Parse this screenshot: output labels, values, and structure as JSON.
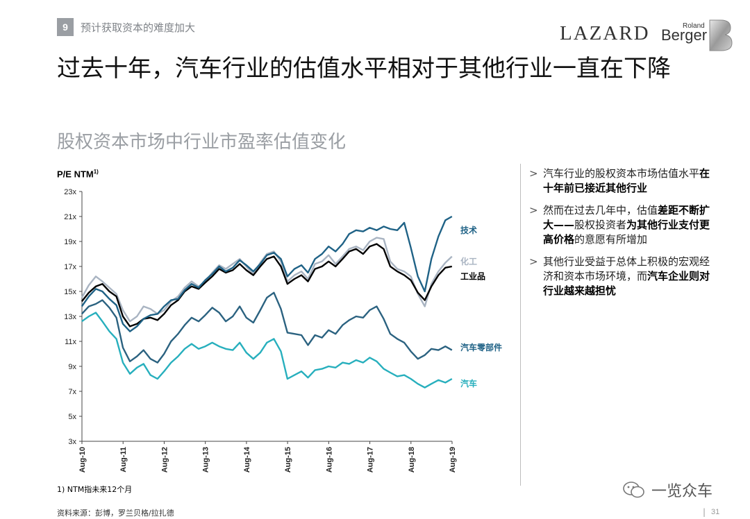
{
  "header": {
    "section_number": "9",
    "section_title": "预计获取资本的难度加大",
    "logo_lazard": "LAZARD",
    "logo_roland": "Roland",
    "logo_berger": "Berger"
  },
  "title": "过去十年，汽车行业的估值水平相对于其他行业一直在下降",
  "subtitle": "股权资本市场中行业市盈率估值变化",
  "chart_data": {
    "type": "line",
    "ylabel": "P/E NTM",
    "ylabel_sup": "1)",
    "ylim": [
      3,
      23
    ],
    "y_ticks": [
      "3x",
      "5x",
      "7x",
      "9x",
      "11x",
      "13x",
      "15x",
      "17x",
      "19x",
      "21x",
      "23x"
    ],
    "x_ticks": [
      "Aug-10",
      "Aug-11",
      "Aug-12",
      "Aug-13",
      "Aug-14",
      "Aug-15",
      "Aug-16",
      "Aug-17",
      "Aug-18",
      "Aug-19"
    ],
    "x_range": [
      2010.583,
      2019.583
    ],
    "series": [
      {
        "name": "化工",
        "color": "#a9b4c2",
        "points": [
          [
            2010.58,
            14.5
          ],
          [
            2010.75,
            15.5
          ],
          [
            2010.92,
            16.2
          ],
          [
            2011.08,
            15.8
          ],
          [
            2011.25,
            15.3
          ],
          [
            2011.42,
            14.8
          ],
          [
            2011.58,
            13.5
          ],
          [
            2011.75,
            12.6
          ],
          [
            2011.92,
            13.0
          ],
          [
            2012.08,
            13.8
          ],
          [
            2012.25,
            13.6
          ],
          [
            2012.42,
            13.2
          ],
          [
            2012.58,
            13.5
          ],
          [
            2012.75,
            14.2
          ],
          [
            2012.92,
            14.6
          ],
          [
            2013.08,
            15.3
          ],
          [
            2013.25,
            15.8
          ],
          [
            2013.42,
            15.4
          ],
          [
            2013.58,
            15.8
          ],
          [
            2013.75,
            16.5
          ],
          [
            2013.92,
            17.1
          ],
          [
            2014.08,
            16.8
          ],
          [
            2014.25,
            17.2
          ],
          [
            2014.42,
            17.6
          ],
          [
            2014.58,
            17.0
          ],
          [
            2014.75,
            16.4
          ],
          [
            2014.92,
            17.3
          ],
          [
            2015.08,
            18.0
          ],
          [
            2015.25,
            18.2
          ],
          [
            2015.42,
            17.4
          ],
          [
            2015.58,
            15.8
          ],
          [
            2015.75,
            16.3
          ],
          [
            2015.92,
            16.6
          ],
          [
            2016.08,
            16.0
          ],
          [
            2016.25,
            17.2
          ],
          [
            2016.42,
            17.4
          ],
          [
            2016.58,
            17.9
          ],
          [
            2016.75,
            17.2
          ],
          [
            2016.92,
            17.8
          ],
          [
            2017.08,
            18.4
          ],
          [
            2017.25,
            18.6
          ],
          [
            2017.42,
            18.3
          ],
          [
            2017.58,
            19.0
          ],
          [
            2017.75,
            19.3
          ],
          [
            2017.92,
            19.2
          ],
          [
            2018.08,
            17.4
          ],
          [
            2018.25,
            16.8
          ],
          [
            2018.42,
            16.6
          ],
          [
            2018.58,
            16.2
          ],
          [
            2018.75,
            14.8
          ],
          [
            2018.92,
            13.8
          ],
          [
            2019.08,
            15.6
          ],
          [
            2019.25,
            16.6
          ],
          [
            2019.42,
            17.3
          ],
          [
            2019.58,
            17.8
          ]
        ]
      },
      {
        "name": "工业品",
        "color": "#000000",
        "points": [
          [
            2010.58,
            14.2
          ],
          [
            2010.75,
            14.9
          ],
          [
            2010.92,
            15.4
          ],
          [
            2011.08,
            15.6
          ],
          [
            2011.25,
            15.0
          ],
          [
            2011.42,
            14.6
          ],
          [
            2011.58,
            13.0
          ],
          [
            2011.75,
            12.2
          ],
          [
            2011.92,
            12.4
          ],
          [
            2012.08,
            12.8
          ],
          [
            2012.25,
            12.9
          ],
          [
            2012.42,
            12.7
          ],
          [
            2012.58,
            13.2
          ],
          [
            2012.75,
            13.9
          ],
          [
            2012.92,
            14.3
          ],
          [
            2013.08,
            15.0
          ],
          [
            2013.25,
            15.4
          ],
          [
            2013.42,
            15.2
          ],
          [
            2013.58,
            15.7
          ],
          [
            2013.75,
            16.2
          ],
          [
            2013.92,
            16.8
          ],
          [
            2014.08,
            16.5
          ],
          [
            2014.25,
            16.7
          ],
          [
            2014.42,
            17.2
          ],
          [
            2014.58,
            16.7
          ],
          [
            2014.75,
            16.3
          ],
          [
            2014.92,
            17.0
          ],
          [
            2015.08,
            17.6
          ],
          [
            2015.25,
            17.8
          ],
          [
            2015.42,
            17.0
          ],
          [
            2015.58,
            15.6
          ],
          [
            2015.75,
            16.0
          ],
          [
            2015.92,
            16.3
          ],
          [
            2016.08,
            15.8
          ],
          [
            2016.25,
            16.8
          ],
          [
            2016.42,
            17.0
          ],
          [
            2016.58,
            17.4
          ],
          [
            2016.75,
            17.0
          ],
          [
            2016.92,
            17.6
          ],
          [
            2017.08,
            18.2
          ],
          [
            2017.25,
            18.4
          ],
          [
            2017.42,
            18.0
          ],
          [
            2017.58,
            18.6
          ],
          [
            2017.75,
            18.8
          ],
          [
            2017.92,
            18.4
          ],
          [
            2018.08,
            17.0
          ],
          [
            2018.25,
            16.6
          ],
          [
            2018.42,
            16.3
          ],
          [
            2018.58,
            15.9
          ],
          [
            2018.75,
            14.9
          ],
          [
            2018.92,
            14.3
          ],
          [
            2019.08,
            15.4
          ],
          [
            2019.25,
            16.3
          ],
          [
            2019.42,
            16.9
          ],
          [
            2019.58,
            17.0
          ]
        ]
      },
      {
        "name": "技术",
        "color": "#1f6286",
        "points": [
          [
            2010.58,
            13.8
          ],
          [
            2010.75,
            14.6
          ],
          [
            2010.92,
            15.2
          ],
          [
            2011.08,
            15.0
          ],
          [
            2011.25,
            14.4
          ],
          [
            2011.42,
            13.9
          ],
          [
            2011.58,
            12.4
          ],
          [
            2011.75,
            11.8
          ],
          [
            2011.92,
            12.2
          ],
          [
            2012.08,
            12.8
          ],
          [
            2012.25,
            13.1
          ],
          [
            2012.42,
            13.2
          ],
          [
            2012.58,
            13.8
          ],
          [
            2012.75,
            14.3
          ],
          [
            2012.92,
            14.4
          ],
          [
            2013.08,
            15.1
          ],
          [
            2013.25,
            15.6
          ],
          [
            2013.42,
            15.3
          ],
          [
            2013.58,
            15.9
          ],
          [
            2013.75,
            16.4
          ],
          [
            2013.92,
            17.0
          ],
          [
            2014.08,
            16.6
          ],
          [
            2014.25,
            16.9
          ],
          [
            2014.42,
            17.5
          ],
          [
            2014.58,
            17.1
          ],
          [
            2014.75,
            16.6
          ],
          [
            2014.92,
            17.2
          ],
          [
            2015.08,
            17.9
          ],
          [
            2015.25,
            18.1
          ],
          [
            2015.42,
            17.6
          ],
          [
            2015.58,
            16.2
          ],
          [
            2015.75,
            16.8
          ],
          [
            2015.92,
            17.1
          ],
          [
            2016.08,
            16.5
          ],
          [
            2016.25,
            17.6
          ],
          [
            2016.42,
            18.0
          ],
          [
            2016.58,
            18.6
          ],
          [
            2016.75,
            18.2
          ],
          [
            2016.92,
            18.8
          ],
          [
            2017.08,
            19.6
          ],
          [
            2017.25,
            19.9
          ],
          [
            2017.42,
            19.8
          ],
          [
            2017.58,
            20.1
          ],
          [
            2017.75,
            19.9
          ],
          [
            2017.92,
            20.2
          ],
          [
            2018.08,
            20.0
          ],
          [
            2018.25,
            19.9
          ],
          [
            2018.42,
            20.5
          ],
          [
            2018.58,
            18.5
          ],
          [
            2018.75,
            16.2
          ],
          [
            2018.92,
            15.0
          ],
          [
            2019.08,
            17.6
          ],
          [
            2019.25,
            19.4
          ],
          [
            2019.42,
            20.7
          ],
          [
            2019.58,
            21.0
          ]
        ]
      },
      {
        "name": "汽车零部件",
        "color": "#2b6280",
        "points": [
          [
            2010.58,
            13.2
          ],
          [
            2010.75,
            13.8
          ],
          [
            2010.92,
            14.0
          ],
          [
            2011.08,
            14.3
          ],
          [
            2011.25,
            13.7
          ],
          [
            2011.42,
            12.9
          ],
          [
            2011.58,
            10.5
          ],
          [
            2011.75,
            9.4
          ],
          [
            2011.92,
            9.8
          ],
          [
            2012.08,
            10.3
          ],
          [
            2012.25,
            9.6
          ],
          [
            2012.42,
            9.3
          ],
          [
            2012.58,
            10.0
          ],
          [
            2012.75,
            11.0
          ],
          [
            2012.92,
            11.6
          ],
          [
            2013.08,
            12.3
          ],
          [
            2013.25,
            12.9
          ],
          [
            2013.42,
            12.6
          ],
          [
            2013.58,
            13.1
          ],
          [
            2013.75,
            13.7
          ],
          [
            2013.92,
            13.3
          ],
          [
            2014.08,
            12.6
          ],
          [
            2014.25,
            13.0
          ],
          [
            2014.42,
            13.8
          ],
          [
            2014.58,
            12.9
          ],
          [
            2014.75,
            12.5
          ],
          [
            2014.92,
            13.5
          ],
          [
            2015.08,
            14.5
          ],
          [
            2015.25,
            14.9
          ],
          [
            2015.42,
            13.6
          ],
          [
            2015.58,
            11.7
          ],
          [
            2015.75,
            11.6
          ],
          [
            2015.92,
            11.5
          ],
          [
            2016.08,
            10.7
          ],
          [
            2016.25,
            11.5
          ],
          [
            2016.42,
            11.3
          ],
          [
            2016.58,
            11.9
          ],
          [
            2016.75,
            11.6
          ],
          [
            2016.92,
            12.3
          ],
          [
            2017.08,
            12.7
          ],
          [
            2017.25,
            13.0
          ],
          [
            2017.42,
            12.9
          ],
          [
            2017.58,
            13.5
          ],
          [
            2017.75,
            13.8
          ],
          [
            2017.92,
            12.8
          ],
          [
            2018.08,
            11.6
          ],
          [
            2018.25,
            11.2
          ],
          [
            2018.42,
            10.9
          ],
          [
            2018.58,
            10.2
          ],
          [
            2018.75,
            9.6
          ],
          [
            2018.92,
            9.9
          ],
          [
            2019.08,
            10.4
          ],
          [
            2019.25,
            10.3
          ],
          [
            2019.42,
            10.6
          ],
          [
            2019.58,
            10.3
          ]
        ]
      },
      {
        "name": "汽车",
        "color": "#27afbd",
        "points": [
          [
            2010.58,
            12.6
          ],
          [
            2010.75,
            13.0
          ],
          [
            2010.92,
            13.3
          ],
          [
            2011.08,
            12.6
          ],
          [
            2011.25,
            11.8
          ],
          [
            2011.42,
            11.2
          ],
          [
            2011.58,
            9.3
          ],
          [
            2011.75,
            8.4
          ],
          [
            2011.92,
            8.9
          ],
          [
            2012.08,
            9.2
          ],
          [
            2012.25,
            8.3
          ],
          [
            2012.42,
            8.0
          ],
          [
            2012.58,
            8.6
          ],
          [
            2012.75,
            9.3
          ],
          [
            2012.92,
            9.8
          ],
          [
            2013.08,
            10.4
          ],
          [
            2013.25,
            10.8
          ],
          [
            2013.42,
            10.4
          ],
          [
            2013.58,
            10.6
          ],
          [
            2013.75,
            10.9
          ],
          [
            2013.92,
            10.6
          ],
          [
            2014.08,
            10.4
          ],
          [
            2014.25,
            10.3
          ],
          [
            2014.42,
            10.9
          ],
          [
            2014.58,
            10.1
          ],
          [
            2014.75,
            9.6
          ],
          [
            2014.92,
            10.1
          ],
          [
            2015.08,
            10.9
          ],
          [
            2015.25,
            11.2
          ],
          [
            2015.42,
            10.2
          ],
          [
            2015.58,
            8.0
          ],
          [
            2015.75,
            8.3
          ],
          [
            2015.92,
            8.6
          ],
          [
            2016.08,
            8.1
          ],
          [
            2016.25,
            8.7
          ],
          [
            2016.42,
            8.8
          ],
          [
            2016.58,
            9.0
          ],
          [
            2016.75,
            8.9
          ],
          [
            2016.92,
            9.3
          ],
          [
            2017.08,
            9.2
          ],
          [
            2017.25,
            9.5
          ],
          [
            2017.42,
            9.3
          ],
          [
            2017.58,
            9.7
          ],
          [
            2017.75,
            9.4
          ],
          [
            2017.92,
            8.8
          ],
          [
            2018.08,
            8.5
          ],
          [
            2018.25,
            8.2
          ],
          [
            2018.42,
            8.3
          ],
          [
            2018.58,
            8.0
          ],
          [
            2018.75,
            7.6
          ],
          [
            2018.92,
            7.3
          ],
          [
            2019.08,
            7.6
          ],
          [
            2019.25,
            7.9
          ],
          [
            2019.42,
            7.7
          ],
          [
            2019.58,
            8.0
          ]
        ]
      }
    ],
    "end_labels": [
      {
        "text": "技术",
        "y": 19.9,
        "color": "#1f6286"
      },
      {
        "text": "化工",
        "y": 17.4,
        "color": "#a9b4c2"
      },
      {
        "text": "工业品",
        "y": 16.2,
        "color": "#000000"
      },
      {
        "text": "汽车零部件",
        "y": 10.5,
        "color": "#1f6286"
      },
      {
        "text": "汽车",
        "y": 7.6,
        "color": "#27afbd"
      }
    ]
  },
  "bullets": [
    [
      {
        "t": "汽车行业的股权资本市场估值水平",
        "b": false
      },
      {
        "t": "在十年前已接近其他行业",
        "b": true
      }
    ],
    [
      {
        "t": "然而在过去几年中，估值",
        "b": false
      },
      {
        "t": "差距不断扩大——",
        "b": true
      },
      {
        "t": "股权投资者",
        "b": false
      },
      {
        "t": "为其他行业支付更高价格",
        "b": true
      },
      {
        "t": "的意愿有所增加",
        "b": false
      }
    ],
    [
      {
        "t": "其他行业受益于总体上积极的宏观经济和资本市场环境，而",
        "b": false
      },
      {
        "t": "汽车企业则对行业越来越担忧",
        "b": true
      }
    ]
  ],
  "bullet_marker": ">",
  "footnote": "1) NTM指未来12个月",
  "source": "资料来源：彭博，罗兰贝格/拉扎德",
  "watermark": "一览众车",
  "page_separator": "|",
  "page_number": "31",
  "colors": {
    "badge": "#9a9ea3",
    "subtitle": "#9a9ea3"
  }
}
